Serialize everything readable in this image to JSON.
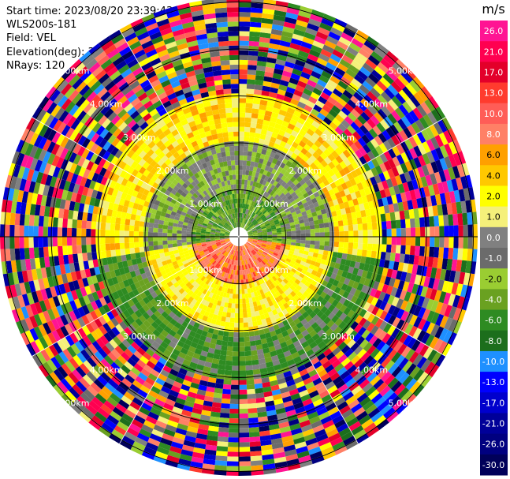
{
  "header": {
    "start_time": "Start time: 2023/08/20 23:39:43",
    "instrument": "WLS200s-181",
    "field": "Field: VEL",
    "elevation": "Elevation(deg): 35.30",
    "nrays": "NRays: 120"
  },
  "chart_data": {
    "type": "heatmap",
    "projection": "polar (PPI)",
    "n_rays": 120,
    "range_rings_km": [
      1.0,
      2.0,
      3.0,
      4.0,
      5.0
    ],
    "range_ring_labels": [
      "1.00km",
      "2.00km",
      "3.00km",
      "4.00km",
      "5.00km"
    ],
    "spokes_deg": [
      0,
      30,
      60,
      90,
      120,
      150,
      180,
      210,
      240,
      270,
      300,
      330
    ],
    "colorbar": {
      "unit_label": "m/s",
      "tick_labels": [
        "26.0",
        "21.0",
        "17.0",
        "13.0",
        "10.0",
        "8.0",
        "6.0",
        "4.0",
        "2.0",
        "1.0",
        "0.0",
        "-1.0",
        "-2.0",
        "-4.0",
        "-6.0",
        "-8.0",
        "-10.0",
        "-13.0",
        "-17.0",
        "-21.0",
        "-26.0",
        "-30.0"
      ],
      "colors": [
        "#ff1493",
        "#ff0050",
        "#e3002a",
        "#ff3b2e",
        "#ff5d57",
        "#ff8066",
        "#ffa000",
        "#ffc800",
        "#ffff00",
        "#f5f07a",
        "#808080",
        "#6b6b6b",
        "#9acd32",
        "#6aa121",
        "#2e8b22",
        "#1c6e1c",
        "#1e90ff",
        "#0000ff",
        "#0000cd",
        "#000099",
        "#000080",
        "#00005a"
      ]
    }
  }
}
